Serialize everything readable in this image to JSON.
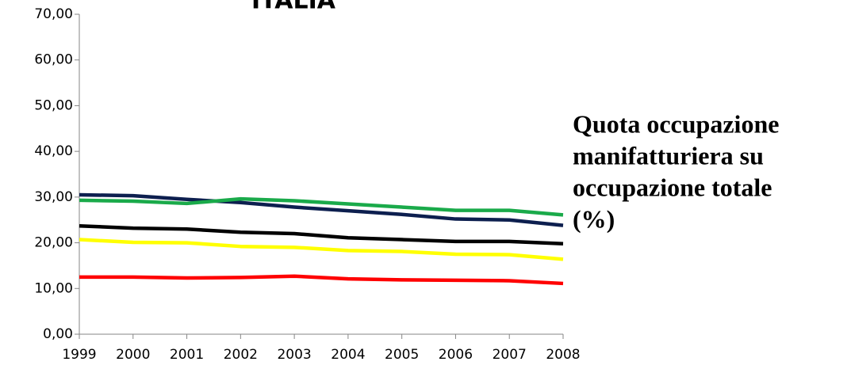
{
  "chart_data": {
    "type": "line",
    "title": "ITALIA",
    "annotation": [
      "Quota occupazione",
      "manifatturiera su",
      "occupazione totale",
      "(%)"
    ],
    "x": [
      1999,
      2000,
      2001,
      2002,
      2003,
      2004,
      2005,
      2006,
      2007,
      2008
    ],
    "xlim": [
      1999,
      2008
    ],
    "xticks": [
      1999,
      2000,
      2001,
      2002,
      2003,
      2004,
      2005,
      2006,
      2007,
      2008
    ],
    "ylim": [
      0,
      70
    ],
    "yticks": [
      {
        "value": 0,
        "label": "0,00"
      },
      {
        "value": 10,
        "label": "10,00"
      },
      {
        "value": 20,
        "label": "20,00"
      },
      {
        "value": 30,
        "label": "30,00"
      },
      {
        "value": 40,
        "label": "40,00"
      },
      {
        "value": 50,
        "label": "50,00"
      },
      {
        "value": 60,
        "label": "60,00"
      },
      {
        "value": 70,
        "label": "70,00"
      }
    ],
    "series": [
      {
        "color": "#0d1f4f",
        "values": [
          30.5,
          30.3,
          29.5,
          28.8,
          27.8,
          27.0,
          26.2,
          25.2,
          25.0,
          23.8
        ]
      },
      {
        "color": "#1aaa4a",
        "values": [
          29.3,
          29.1,
          28.6,
          29.6,
          29.2,
          28.5,
          27.8,
          27.1,
          27.1,
          26.1
        ]
      },
      {
        "color": "#000000",
        "values": [
          23.7,
          23.2,
          23.0,
          22.3,
          22.0,
          21.1,
          20.7,
          20.3,
          20.3,
          19.8
        ]
      },
      {
        "color": "#ffff00",
        "values": [
          20.7,
          20.1,
          20.0,
          19.2,
          19.0,
          18.3,
          18.1,
          17.5,
          17.4,
          16.4
        ]
      },
      {
        "color": "#ff0000",
        "values": [
          12.5,
          12.5,
          12.3,
          12.4,
          12.7,
          12.1,
          11.9,
          11.8,
          11.7,
          11.1
        ]
      }
    ]
  }
}
